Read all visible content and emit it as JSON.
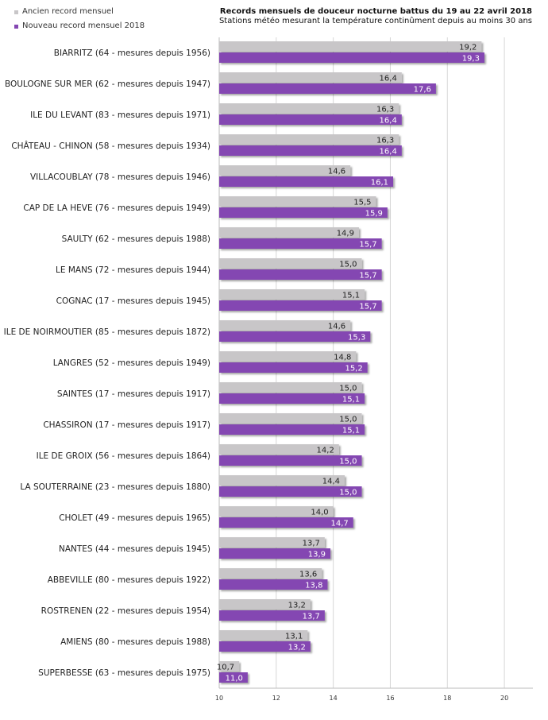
{
  "legend": {
    "old_label": "Ancien record mensuel",
    "new_label": "Nouveau record mensuel 2018"
  },
  "colors": {
    "old": "#c8c6c8",
    "new": "#8447b2"
  },
  "chart_data": {
    "type": "bar",
    "orientation": "horizontal",
    "title": "Records mensuels de douceur nocturne battus du 19 au 22 avril 2018",
    "subtitle": "Stations météo mesurant la température continûment depuis au moins 30 ans",
    "xlabel": "",
    "ylabel": "",
    "xlim": [
      10,
      21
    ],
    "xticks": [
      10,
      12,
      14,
      16,
      18,
      20
    ],
    "xtick_labels": [
      "10",
      "12",
      "14",
      "16",
      "18",
      "20"
    ],
    "grid": true,
    "legend_position": "top-left",
    "categories": [
      "BIARRITZ (64 - mesures depuis 1956)",
      "BOULOGNE SUR MER (62 - mesures depuis 1947)",
      "ILE DU LEVANT (83 - mesures depuis 1971)",
      "CHÂTEAU - CHINON (58 - mesures depuis 1934)",
      "VILLACOUBLAY (78 - mesures depuis 1946)",
      "CAP DE LA HEVE (76 - mesures depuis 1949)",
      "SAULTY (62 - mesures depuis 1988)",
      "LE MANS (72 - mesures depuis 1944)",
      "COGNAC (17 - mesures depuis 1945)",
      "ILE DE NOIRMOUTIER (85 - mesures depuis 1872)",
      "LANGRES (52 - mesures depuis 1949)",
      "SAINTES (17 - mesures depuis 1917)",
      "CHASSIRON (17 - mesures depuis 1917)",
      "ILE DE GROIX (56 - mesures depuis 1864)",
      "LA SOUTERRAINE (23 - mesures depuis 1880)",
      "CHOLET (49 - mesures depuis 1965)",
      "NANTES (44 - mesures depuis 1945)",
      "ABBEVILLE (80 - mesures depuis 1922)",
      "ROSTRENEN (22 - mesures depuis 1954)",
      "AMIENS (80 - mesures depuis 1988)",
      "SUPERBESSE (63 - mesures depuis 1975)"
    ],
    "series": [
      {
        "name": "Ancien record mensuel",
        "values": [
          19.2,
          16.4,
          16.3,
          16.3,
          14.6,
          15.5,
          14.9,
          15.0,
          15.1,
          14.6,
          14.8,
          15.0,
          15.0,
          14.2,
          14.4,
          14.0,
          13.7,
          13.6,
          13.2,
          13.1,
          10.7
        ],
        "labels": [
          "19,2",
          "16,4",
          "16,3",
          "16,3",
          "14,6",
          "15,5",
          "14,9",
          "15,0",
          "15,1",
          "14,6",
          "14,8",
          "15,0",
          "15,0",
          "14,2",
          "14,4",
          "14,0",
          "13,7",
          "13,6",
          "13,2",
          "13,1",
          "10,7"
        ]
      },
      {
        "name": "Nouveau record mensuel 2018",
        "values": [
          19.3,
          17.6,
          16.4,
          16.4,
          16.1,
          15.9,
          15.7,
          15.7,
          15.7,
          15.3,
          15.2,
          15.1,
          15.1,
          15.0,
          15.0,
          14.7,
          13.9,
          13.8,
          13.7,
          13.2,
          11.0
        ],
        "labels": [
          "19,3",
          "17,6",
          "16,4",
          "16,4",
          "16,1",
          "15,9",
          "15,7",
          "15,7",
          "15,7",
          "15,3",
          "15,2",
          "15,1",
          "15,1",
          "15,0",
          "15,0",
          "14,7",
          "13,9",
          "13,8",
          "13,7",
          "13,2",
          "11,0"
        ]
      }
    ]
  }
}
